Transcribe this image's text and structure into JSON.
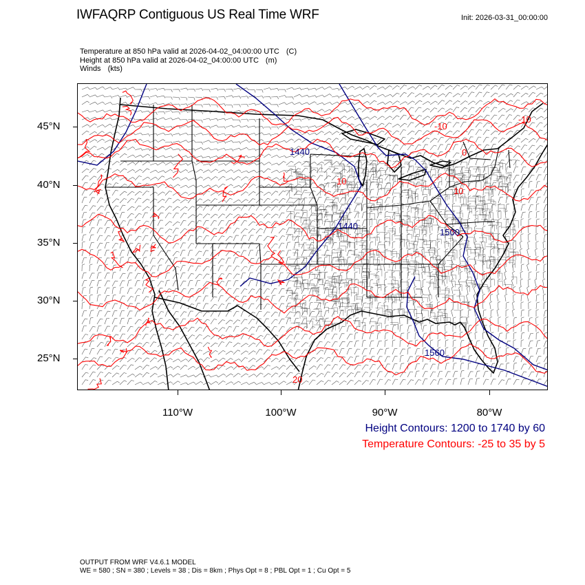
{
  "header": {
    "title": "IWFAQRP Contiguous US Real Time WRF",
    "init": "Init: 2026-03-31_00:00:00"
  },
  "fields": [
    {
      "text": "Temperature at 850 hPa valid at 2026-04-02_04:00:00 UTC",
      "unit": "(C)"
    },
    {
      "text": "Height at 850 hPa valid at 2026-04-02_04:00:00 UTC",
      "unit": "(m)"
    },
    {
      "text": "Winds",
      "unit": "(kts)"
    }
  ],
  "map": {
    "lat_labels": [
      "45°N",
      "40°N",
      "35°N",
      "30°N",
      "25°N"
    ],
    "lon_labels": [
      "110°W",
      "100°W",
      "90°W",
      "80°W"
    ],
    "height_contour_labels": [
      "1440",
      "1440",
      "1500",
      "1560"
    ],
    "temperature_contour_labels": [
      "-10",
      "-10",
      "0",
      "10",
      "10",
      "20"
    ],
    "colors": {
      "height_contour": "#000080",
      "temperature_contour": "#ff0000",
      "boundaries": "#000000",
      "wind_barbs": "#000000"
    }
  },
  "legend": {
    "height": "Height Contours: 1200 to 1740 by 60",
    "temperature": "Temperature Contours: -25 to 35 by 5"
  },
  "footer": {
    "line1": "OUTPUT FROM WRF V4.6.1 MODEL",
    "line2": "WE = 580 ; SN = 380 ; Levels = 38 ; Dis = 8km ; Phys Opt = 8 ; PBL Opt = 1 ; Cu Opt = 5"
  }
}
